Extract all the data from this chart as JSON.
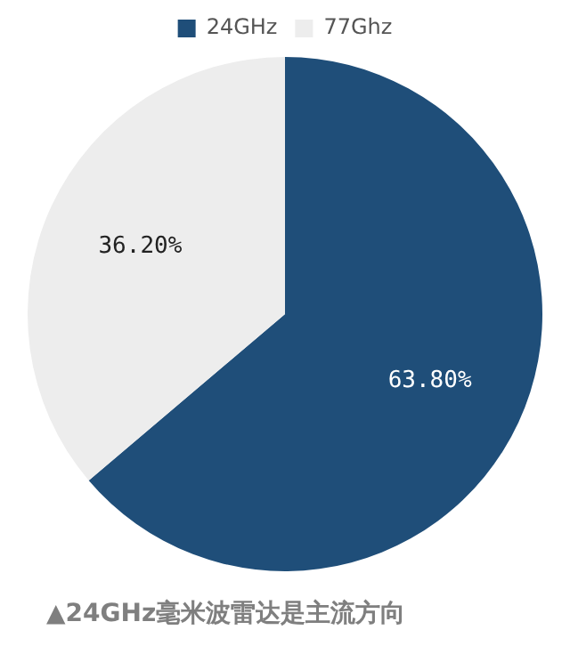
{
  "chart_data": {
    "type": "pie",
    "categories": [
      "24GHz",
      "77Ghz"
    ],
    "values": [
      63.8,
      36.2
    ],
    "colors": [
      "#1f4e79",
      "#ededed"
    ],
    "value_labels": [
      "63.80%",
      "36.20%"
    ],
    "legend": "top",
    "annotations": [
      "▲24GHz毫米波雷达是主流方向"
    ]
  }
}
